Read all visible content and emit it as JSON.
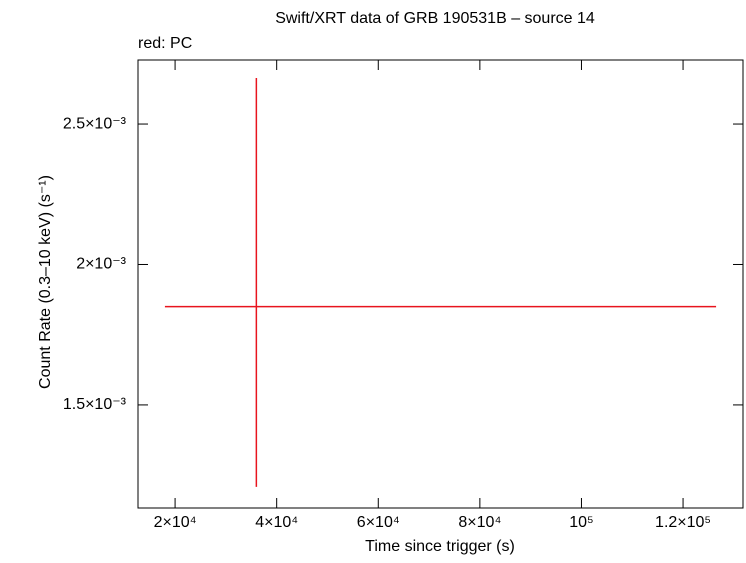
{
  "chart_data": {
    "type": "scatter",
    "title": "Swift/XRT data of GRB 190531B – source 14",
    "subtitle": "red: PC",
    "x_label": "Time since trigger (s)",
    "y_label": "Count Rate (0.3–10 keV) (s⁻¹)",
    "series": [
      {
        "name": "PC",
        "color": "#e8141e",
        "x": [
          36000
        ],
        "values": [
          0.00185
        ],
        "xerr_minus": [
          18000
        ],
        "xerr_plus": [
          90500
        ],
        "yerr_minus": [
          0.000642
        ],
        "yerr_plus": [
          0.000814
        ]
      }
    ],
    "xlim": [
      12700,
      131800
    ],
    "xticks": [
      {
        "value": 20000,
        "label": "2×10⁴"
      },
      {
        "value": 40000,
        "label": "4×10⁴"
      },
      {
        "value": 60000,
        "label": "6×10⁴"
      },
      {
        "value": 80000,
        "label": "8×10⁴"
      },
      {
        "value": 100000,
        "label": "10⁵"
      },
      {
        "value": 120000,
        "label": "1.2×10⁵"
      }
    ],
    "ylim": [
      0.001133,
      0.002728
    ],
    "yticks": [
      {
        "value": 0.0015,
        "label": "1.5×10⁻³"
      },
      {
        "value": 0.002,
        "label": "2×10⁻³"
      },
      {
        "value": 0.0025,
        "label": "2.5×10⁻³"
      }
    ]
  }
}
